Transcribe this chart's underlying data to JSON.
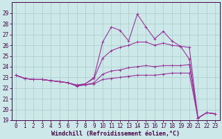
{
  "xlabel": "Windchill (Refroidissement éolien,°C)",
  "bg_color": "#cce8e8",
  "line_color": "#993399",
  "grid_color": "#aacccc",
  "x_hours": [
    0,
    1,
    2,
    3,
    4,
    5,
    6,
    7,
    8,
    9,
    10,
    11,
    12,
    13,
    14,
    15,
    16,
    17,
    18,
    19,
    20,
    21,
    22,
    23
  ],
  "series": {
    "s1": [
      23.2,
      22.9,
      22.8,
      22.8,
      22.7,
      22.6,
      22.5,
      22.2,
      22.4,
      23.0,
      26.3,
      27.7,
      27.4,
      26.4,
      28.9,
      27.7,
      26.6,
      27.3,
      26.4,
      25.9,
      24.7,
      19.2,
      19.7,
      19.6
    ],
    "s2": [
      23.2,
      22.9,
      22.8,
      22.8,
      22.7,
      22.6,
      22.5,
      22.3,
      22.4,
      22.9,
      24.8,
      25.5,
      25.8,
      26.0,
      26.3,
      26.3,
      26.0,
      26.2,
      26.0,
      25.9,
      25.8,
      19.2,
      19.7,
      19.6
    ],
    "s3": [
      23.2,
      22.9,
      22.8,
      22.8,
      22.7,
      22.6,
      22.5,
      22.2,
      22.3,
      22.5,
      23.3,
      23.6,
      23.7,
      23.9,
      24.0,
      24.1,
      24.0,
      24.1,
      24.1,
      24.1,
      24.2,
      19.2,
      19.7,
      19.6
    ],
    "s4": [
      23.2,
      22.9,
      22.8,
      22.8,
      22.7,
      22.6,
      22.5,
      22.2,
      22.3,
      22.4,
      22.8,
      22.9,
      23.0,
      23.1,
      23.2,
      23.2,
      23.2,
      23.3,
      23.4,
      23.4,
      23.4,
      19.2,
      19.7,
      19.6
    ]
  },
  "ylim": [
    19,
    30
  ],
  "yticks": [
    19,
    20,
    21,
    22,
    23,
    24,
    25,
    26,
    27,
    28,
    29
  ],
  "xticks": [
    0,
    1,
    2,
    3,
    4,
    5,
    6,
    7,
    8,
    9,
    10,
    11,
    12,
    13,
    14,
    15,
    16,
    17,
    18,
    19,
    20,
    21,
    22,
    23
  ],
  "markersize": 3,
  "linewidth": 0.8,
  "tick_fontsize": 5.5,
  "xlabel_fontsize": 6.0,
  "axis_color": "#440044",
  "tick_color": "#440044",
  "label_color": "#440044"
}
